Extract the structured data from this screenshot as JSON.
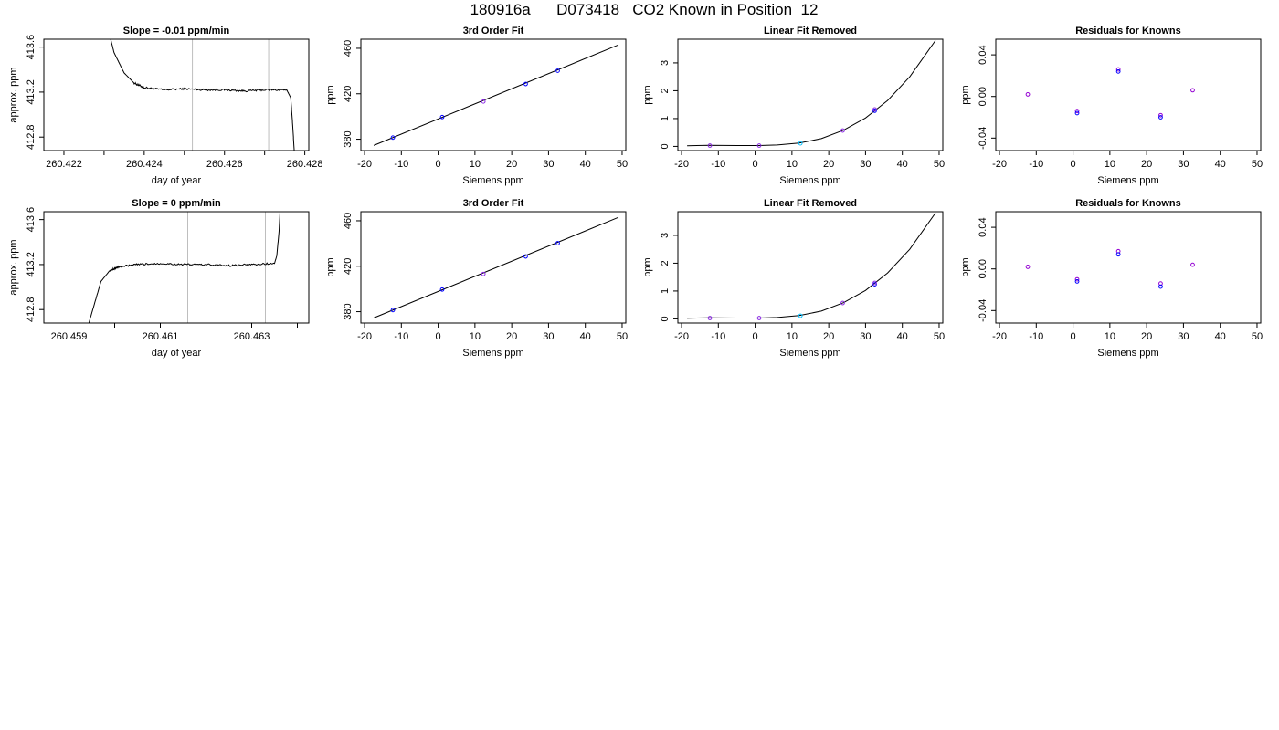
{
  "page_title": "180916a      D073418   CO2 Known in Position  12",
  "colors": {
    "trace": "#000000",
    "window_line": "#bebebe",
    "point_blue": "#0000ff",
    "point_purple": "#8a2be2",
    "point_cyan": "#00bfff",
    "point_violet": "#9400d3"
  },
  "chart_data": [
    {
      "type": "line",
      "title": "Slope =  -0.01  ppm/min",
      "xlabel": "day of year",
      "ylabel": "approx. ppm",
      "xlim": [
        260.4215,
        260.4281
      ],
      "ylim": [
        412.68,
        413.67
      ],
      "xticks": [
        260.422,
        260.423,
        260.424,
        260.425,
        260.426,
        260.427,
        260.428
      ],
      "xticklabels": [
        "260.422",
        "",
        "260.424",
        "",
        "260.426",
        "",
        "260.428"
      ],
      "yticks": [
        412.8,
        413.2,
        413.6
      ],
      "yticklabels": [
        "412.8",
        "413.2",
        "413.6"
      ],
      "vlines": [
        260.4252,
        260.4271
      ],
      "series": [
        {
          "x": [
            260.423,
            260.42325,
            260.4235,
            260.42375,
            260.424,
            260.4245,
            260.425,
            260.4255,
            260.426,
            260.4265,
            260.427,
            260.42755,
            260.42765,
            260.4277,
            260.42775
          ],
          "y": [
            413.9,
            413.55,
            413.37,
            413.28,
            413.24,
            413.22,
            413.23,
            413.22,
            413.22,
            413.21,
            413.22,
            413.22,
            413.15,
            412.9,
            412.6
          ],
          "noise": 0.008
        }
      ]
    },
    {
      "type": "scatter",
      "title": "3rd Order Fit",
      "xlabel": "Siemens ppm",
      "ylabel": "ppm",
      "xlim": [
        -21,
        51
      ],
      "ylim": [
        370,
        468
      ],
      "xticks": [
        -20,
        -10,
        0,
        10,
        20,
        30,
        40,
        50
      ],
      "yticks": [
        380,
        420,
        460
      ],
      "fit_line": {
        "x": [
          -17.5,
          49
        ],
        "y": [
          374.5,
          463
        ]
      },
      "points": [
        {
          "x": -12.3,
          "y": 381.4,
          "color": "#0000ff"
        },
        {
          "x": 1.1,
          "y": 399.5,
          "color": "#0000ff"
        },
        {
          "x": 12.3,
          "y": 413.2,
          "color": "#8a2be2"
        },
        {
          "x": 23.8,
          "y": 428.6,
          "color": "#0000ff"
        },
        {
          "x": 32.5,
          "y": 440.3,
          "color": "#0000ff"
        }
      ]
    },
    {
      "type": "scatter",
      "title": "Linear Fit Removed",
      "xlabel": "Siemens ppm",
      "ylabel": "ppm",
      "xlim": [
        -21,
        51
      ],
      "ylim": [
        -0.15,
        3.85
      ],
      "xticks": [
        -20,
        -10,
        0,
        10,
        20,
        30,
        40,
        50
      ],
      "yticks": [
        0,
        1,
        2,
        3
      ],
      "curve": {
        "x": [
          -18.5,
          -12.5,
          -5,
          1,
          6,
          12,
          18,
          24,
          30,
          36,
          42,
          49
        ],
        "y": [
          0.02,
          0.04,
          0.03,
          0.03,
          0.05,
          0.12,
          0.28,
          0.58,
          1.02,
          1.65,
          2.5,
          3.8
        ]
      },
      "points": [
        {
          "x": -12.3,
          "y": 0.03,
          "color": "#8a2be2"
        },
        {
          "x": 1.1,
          "y": 0.03,
          "color": "#8a2be2"
        },
        {
          "x": 12.3,
          "y": 0.11,
          "color": "#00bfff"
        },
        {
          "x": 23.8,
          "y": 0.57,
          "color": "#8a2be2"
        },
        {
          "x": 32.5,
          "y": 1.28,
          "color": "#0000ff"
        },
        {
          "x": 32.5,
          "y": 1.33,
          "color": "#8a2be2"
        }
      ]
    },
    {
      "type": "scatter",
      "title": "Residuals for Knowns",
      "xlabel": "Siemens ppm",
      "ylabel": "ppm",
      "xlim": [
        -21,
        51
      ],
      "ylim": [
        -0.052,
        0.055
      ],
      "xticks": [
        -20,
        -10,
        0,
        10,
        20,
        30,
        40,
        50
      ],
      "yticks": [
        -0.04,
        0.0,
        0.04
      ],
      "yticklabels": [
        "-0.04",
        "0.00",
        "0.04"
      ],
      "points": [
        {
          "x": -12.3,
          "y": 0.002,
          "color": "#9400d3"
        },
        {
          "x": 1.1,
          "y": -0.014,
          "color": "#9400d3"
        },
        {
          "x": 1.1,
          "y": -0.016,
          "color": "#0000ff"
        },
        {
          "x": 12.3,
          "y": 0.026,
          "color": "#9400d3"
        },
        {
          "x": 12.3,
          "y": 0.024,
          "color": "#0000ff"
        },
        {
          "x": 23.8,
          "y": -0.018,
          "color": "#9400d3"
        },
        {
          "x": 23.8,
          "y": -0.02,
          "color": "#0000ff"
        },
        {
          "x": 32.5,
          "y": 0.006,
          "color": "#9400d3"
        }
      ]
    },
    {
      "type": "line",
      "title": "Slope =  0  ppm/min",
      "xlabel": "day of year",
      "ylabel": "approx. ppm",
      "xlim": [
        260.45845,
        260.46425
      ],
      "ylim": [
        412.68,
        413.67
      ],
      "xticks": [
        260.459,
        260.46,
        260.461,
        260.462,
        260.463,
        260.464
      ],
      "xticklabels": [
        "260.459",
        "",
        "260.461",
        "",
        "260.463",
        ""
      ],
      "yticks": [
        412.8,
        413.2,
        413.6
      ],
      "yticklabels": [
        "412.8",
        "413.2",
        "413.6"
      ],
      "vlines": [
        260.4616,
        260.4633
      ],
      "series": [
        {
          "x": [
            260.4592,
            260.45945,
            260.4597,
            260.4599,
            260.4601,
            260.4605,
            260.461,
            260.4615,
            260.462,
            260.4625,
            260.463,
            260.4635,
            260.46355,
            260.4636,
            260.46365
          ],
          "y": [
            412.3,
            412.7,
            413.05,
            413.15,
            413.18,
            413.2,
            413.21,
            413.2,
            413.2,
            413.19,
            413.2,
            413.21,
            413.28,
            413.5,
            413.9
          ],
          "noise": 0.008
        }
      ]
    },
    {
      "type": "scatter",
      "title": "3rd Order Fit",
      "xlabel": "Siemens ppm",
      "ylabel": "ppm",
      "xlim": [
        -21,
        51
      ],
      "ylim": [
        370,
        468
      ],
      "xticks": [
        -20,
        -10,
        0,
        10,
        20,
        30,
        40,
        50
      ],
      "yticks": [
        380,
        420,
        460
      ],
      "fit_line": {
        "x": [
          -17.5,
          49
        ],
        "y": [
          374.5,
          463
        ]
      },
      "points": [
        {
          "x": -12.3,
          "y": 381.4,
          "color": "#0000ff"
        },
        {
          "x": 1.1,
          "y": 399.5,
          "color": "#0000ff"
        },
        {
          "x": 12.3,
          "y": 413.2,
          "color": "#8a2be2"
        },
        {
          "x": 23.8,
          "y": 428.6,
          "color": "#0000ff"
        },
        {
          "x": 32.5,
          "y": 440.3,
          "color": "#0000ff"
        }
      ]
    },
    {
      "type": "scatter",
      "title": "Linear Fit Removed",
      "xlabel": "Siemens ppm",
      "ylabel": "ppm",
      "xlim": [
        -21,
        51
      ],
      "ylim": [
        -0.15,
        3.85
      ],
      "xticks": [
        -20,
        -10,
        0,
        10,
        20,
        30,
        40,
        50
      ],
      "yticks": [
        0,
        1,
        2,
        3
      ],
      "curve": {
        "x": [
          -18.5,
          -12.5,
          -5,
          1,
          6,
          12,
          18,
          24,
          30,
          36,
          42,
          49
        ],
        "y": [
          0.02,
          0.04,
          0.03,
          0.03,
          0.05,
          0.12,
          0.28,
          0.58,
          1.02,
          1.65,
          2.5,
          3.8
        ]
      },
      "points": [
        {
          "x": -12.3,
          "y": 0.03,
          "color": "#8a2be2"
        },
        {
          "x": 1.1,
          "y": 0.03,
          "color": "#8a2be2"
        },
        {
          "x": 12.3,
          "y": 0.11,
          "color": "#00bfff"
        },
        {
          "x": 23.8,
          "y": 0.57,
          "color": "#8a2be2"
        },
        {
          "x": 32.5,
          "y": 1.24,
          "color": "#0000ff"
        },
        {
          "x": 32.5,
          "y": 1.29,
          "color": "#8a2be2"
        }
      ]
    },
    {
      "type": "scatter",
      "title": "Residuals for Knowns",
      "xlabel": "Siemens ppm",
      "ylabel": "ppm",
      "xlim": [
        -21,
        51
      ],
      "ylim": [
        -0.052,
        0.055
      ],
      "xticks": [
        -20,
        -10,
        0,
        10,
        20,
        30,
        40,
        50
      ],
      "yticks": [
        -0.04,
        0.0,
        0.04
      ],
      "yticklabels": [
        "-0.04",
        "0.00",
        "0.04"
      ],
      "points": [
        {
          "x": -12.3,
          "y": 0.002,
          "color": "#9400d3"
        },
        {
          "x": 1.1,
          "y": -0.01,
          "color": "#9400d3"
        },
        {
          "x": 1.1,
          "y": -0.012,
          "color": "#0000ff"
        },
        {
          "x": 12.3,
          "y": 0.017,
          "color": "#9400d3"
        },
        {
          "x": 12.3,
          "y": 0.014,
          "color": "#0000ff"
        },
        {
          "x": 23.8,
          "y": -0.014,
          "color": "#9400d3"
        },
        {
          "x": 23.8,
          "y": -0.017,
          "color": "#0000ff"
        },
        {
          "x": 32.5,
          "y": 0.004,
          "color": "#9400d3"
        }
      ]
    }
  ]
}
